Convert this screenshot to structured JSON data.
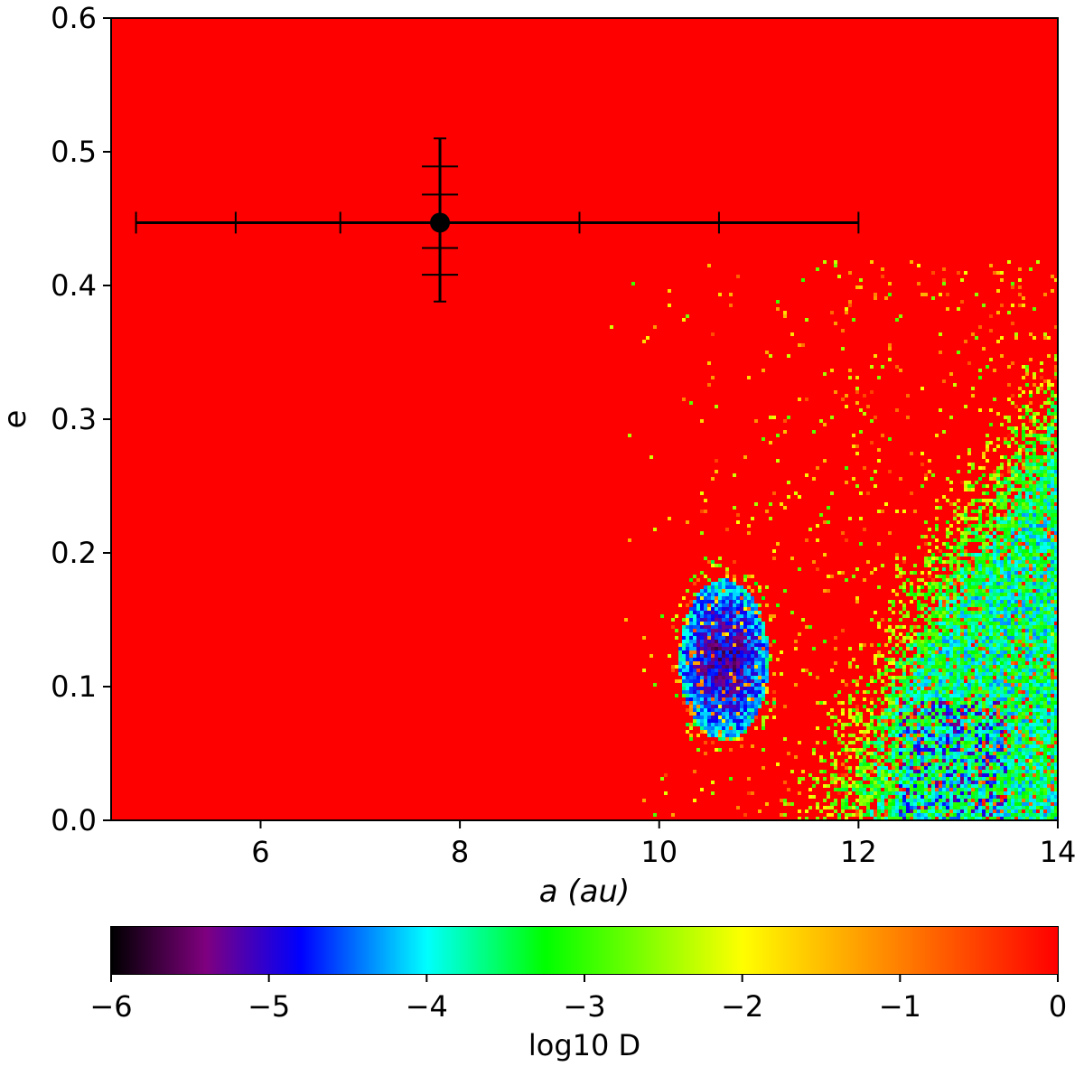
{
  "chart_data": {
    "type": "heatmap",
    "title": "",
    "xlabel": "a (au)",
    "ylabel": "e",
    "xlim": [
      4.5,
      14
    ],
    "ylim": [
      0.0,
      0.6
    ],
    "x_ticks": [
      "6",
      "8",
      "10",
      "12",
      "14"
    ],
    "y_ticks": [
      "0.0",
      "0.1",
      "0.2",
      "0.3",
      "0.4",
      "0.5",
      "0.6"
    ],
    "background_log10D": 0,
    "stable_regions": [
      {
        "a_range": [
          10.2,
          11.1
        ],
        "e_range": [
          0.06,
          0.18
        ],
        "log10D_min": -5.0
      },
      {
        "a_range": [
          11.6,
          14.0
        ],
        "e_range": [
          0.0,
          0.3
        ],
        "log10D_min": -5.5
      }
    ],
    "marker": {
      "a": 7.8,
      "e": 0.447,
      "a_errorbar": [
        4.75,
        12.0
      ],
      "a_caps": [
        5.75,
        6.8,
        9.2,
        10.6
      ],
      "e_errorbar": [
        0.388,
        0.51
      ],
      "e_caps": [
        0.408,
        0.428,
        0.468,
        0.489
      ]
    },
    "colorbar": {
      "label": "log10 D",
      "range": [
        -6,
        0
      ],
      "ticks": [
        "−6",
        "−5",
        "−4",
        "−3",
        "−2",
        "−1",
        "0"
      ],
      "colormap": [
        {
          "v": -6.0,
          "color": "#000000"
        },
        {
          "v": -5.4,
          "color": "#800080"
        },
        {
          "v": -4.8,
          "color": "#0000ff"
        },
        {
          "v": -4.0,
          "color": "#00ffff"
        },
        {
          "v": -3.25,
          "color": "#00ff00"
        },
        {
          "v": -2.0,
          "color": "#ffff00"
        },
        {
          "v": -1.0,
          "color": "#ff8000"
        },
        {
          "v": 0.0,
          "color": "#ff0000"
        }
      ]
    }
  }
}
